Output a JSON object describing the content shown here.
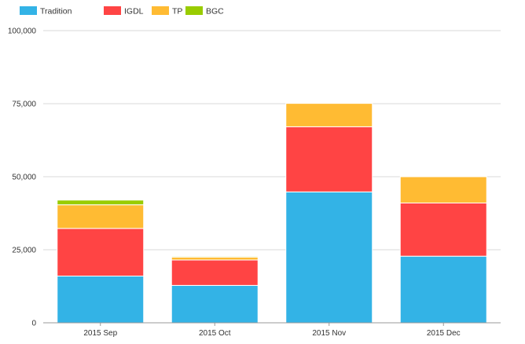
{
  "chart_data": {
    "type": "bar",
    "stacked": true,
    "categories": [
      "2015 Sep",
      "2015 Oct",
      "2015 Nov",
      "2015 Dec"
    ],
    "series": [
      {
        "name": "Tradition",
        "color": "#33b3e6",
        "values": [
          16000,
          12800,
          44800,
          22800
        ]
      },
      {
        "name": "IGDL",
        "color": "#ff4444",
        "values": [
          16300,
          8700,
          22300,
          18200
        ]
      },
      {
        "name": "TP",
        "color": "#ffbb33",
        "values": [
          8100,
          1000,
          8000,
          9000
        ]
      },
      {
        "name": "BGC",
        "color": "#99cc00",
        "values": [
          1600,
          300,
          0,
          0
        ]
      }
    ],
    "ylim": [
      0,
      100000
    ],
    "yticks": [
      0,
      25000,
      50000,
      75000,
      100000
    ],
    "ytick_labels": [
      "0",
      "25,000",
      "50,000",
      "75,000",
      "100,000"
    ],
    "grid": true,
    "legend_position": "top-left",
    "title": "",
    "xlabel": "",
    "ylabel": ""
  }
}
